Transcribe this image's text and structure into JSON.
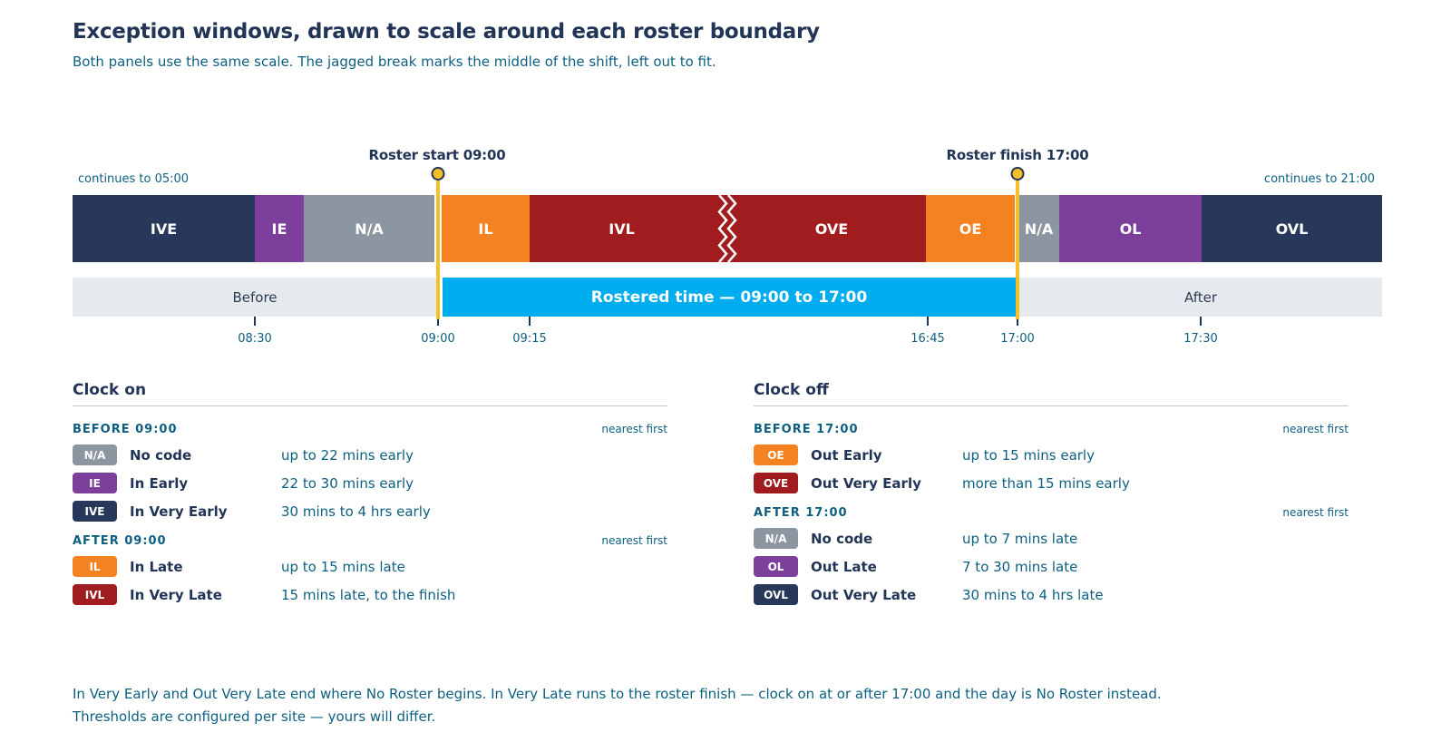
{
  "title": "Exception windows, drawn to scale around each roster boundary",
  "subtitle": "Both panels use the same scale. The jagged break marks the middle of the shift, left out to fit.",
  "colors": {
    "navy": "#27385a",
    "purple": "#7d3f9c",
    "grey": "#8c96a0",
    "orange": "#f58220",
    "red": "#a01c1f",
    "blue": "#00adee",
    "gold": "#f5bf2a",
    "lightgrey": "#e6eaee"
  },
  "timeline": {
    "continues_left": "continues to 05:00",
    "continues_right": "continues to 21:00",
    "markers": [
      {
        "label": "Roster start 09:00",
        "time": "09:00"
      },
      {
        "label": "Roster finish 17:00",
        "time": "17:00"
      }
    ],
    "segments": [
      {
        "code": "IVE",
        "from": "05:00",
        "to": "08:30",
        "color": "navy"
      },
      {
        "code": "IE",
        "from": "08:30",
        "to": "08:38",
        "color": "purple"
      },
      {
        "code": "N/A",
        "from": "08:38",
        "to": "09:00",
        "color": "grey"
      },
      {
        "code": "IL",
        "from": "09:00",
        "to": "09:15",
        "color": "orange"
      },
      {
        "code": "IVL",
        "from": "09:15",
        "to": "17:00",
        "color": "red"
      },
      {
        "code": "OVE",
        "from": "09:00",
        "to": "16:45",
        "color": "red"
      },
      {
        "code": "OE",
        "from": "16:45",
        "to": "17:00",
        "color": "orange"
      },
      {
        "code": "N/A",
        "from": "17:00",
        "to": "17:07",
        "color": "grey"
      },
      {
        "code": "OL",
        "from": "17:07",
        "to": "17:30",
        "color": "purple"
      },
      {
        "code": "OVL",
        "from": "17:30",
        "to": "21:00",
        "color": "navy"
      }
    ],
    "bottom_row": {
      "before": "Before",
      "rostered": "Rostered time — 09:00 to 17:00",
      "after": "After"
    },
    "ticks": [
      "08:30",
      "09:00",
      "09:15",
      "16:45",
      "17:00",
      "17:30"
    ]
  },
  "clock_on": {
    "title": "Clock on",
    "groups": [
      {
        "heading": "BEFORE 09:00",
        "note": "nearest first",
        "items": [
          {
            "code": "N/A",
            "name": "No code",
            "desc": "up to 22 mins early",
            "color": "grey"
          },
          {
            "code": "IE",
            "name": "In Early",
            "desc": "22 to 30 mins early",
            "color": "purple"
          },
          {
            "code": "IVE",
            "name": "In Very Early",
            "desc": "30 mins to 4 hrs early",
            "color": "navy"
          }
        ]
      },
      {
        "heading": "AFTER 09:00",
        "note": "nearest first",
        "items": [
          {
            "code": "IL",
            "name": "In Late",
            "desc": "up to 15 mins late",
            "color": "orange"
          },
          {
            "code": "IVL",
            "name": "In Very Late",
            "desc": "15 mins late, to the finish",
            "color": "red"
          }
        ]
      }
    ]
  },
  "clock_off": {
    "title": "Clock off",
    "groups": [
      {
        "heading": "BEFORE 17:00",
        "note": "nearest first",
        "items": [
          {
            "code": "OE",
            "name": "Out Early",
            "desc": "up to 15 mins early",
            "color": "orange"
          },
          {
            "code": "OVE",
            "name": "Out Very Early",
            "desc": "more than 15 mins early",
            "color": "red"
          }
        ]
      },
      {
        "heading": "AFTER 17:00",
        "note": "nearest first",
        "items": [
          {
            "code": "N/A",
            "name": "No code",
            "desc": "up to 7 mins late",
            "color": "grey"
          },
          {
            "code": "OL",
            "name": "Out Late",
            "desc": "7 to 30 mins late",
            "color": "purple"
          },
          {
            "code": "OVL",
            "name": "Out Very Late",
            "desc": "30 mins to 4 hrs late",
            "color": "navy"
          }
        ]
      }
    ]
  },
  "footnotes": [
    "In Very Early and Out Very Late end where No Roster begins. In Very Late runs to the roster finish — clock on at or after 17:00 and the day is No Roster instead.",
    "Thresholds are configured per site — yours will differ."
  ]
}
